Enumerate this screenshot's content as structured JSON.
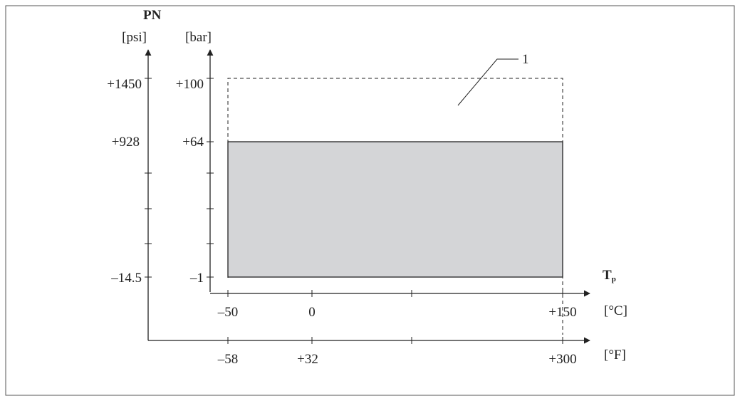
{
  "figure": {
    "y_title": "PN",
    "unit_psi": "[psi]",
    "unit_bar": "[bar]",
    "x_title_main": "T",
    "x_title_sub": "p",
    "unit_c": "[°C]",
    "unit_f": "[°F]",
    "callout": "1"
  },
  "chart_data": {
    "type": "area",
    "axes": {
      "bar": {
        "range": [
          -1,
          100
        ],
        "ticks": [
          -1,
          64,
          100
        ],
        "tick_labels": [
          "–1",
          "+64",
          "+100"
        ]
      },
      "psi": {
        "range": [
          -14.5,
          1450
        ],
        "ticks": [
          -14.5,
          928,
          1450
        ],
        "tick_labels": [
          "–14.5",
          "+928",
          "+1450"
        ]
      },
      "celsius": {
        "range": [
          -50,
          150
        ],
        "ticks": [
          -50,
          0,
          150
        ],
        "tick_labels": [
          "–50",
          "0",
          "+150"
        ]
      },
      "fahrenheit": {
        "range": [
          -58,
          300
        ],
        "ticks": [
          -58,
          32,
          300
        ],
        "tick_labels": [
          "–58",
          "+32",
          "+300"
        ]
      }
    },
    "regions": [
      {
        "kind": "shaded",
        "t_c": [
          -50,
          150
        ],
        "p_bar": [
          -1,
          64
        ]
      },
      {
        "kind": "dashed",
        "t_c": [
          -50,
          150
        ],
        "p_bar": [
          -1,
          100
        ],
        "callout": "1"
      }
    ],
    "colors": {
      "shaded_fill": "#d4d5d7",
      "line": "#222222",
      "frame": "#555555"
    }
  }
}
